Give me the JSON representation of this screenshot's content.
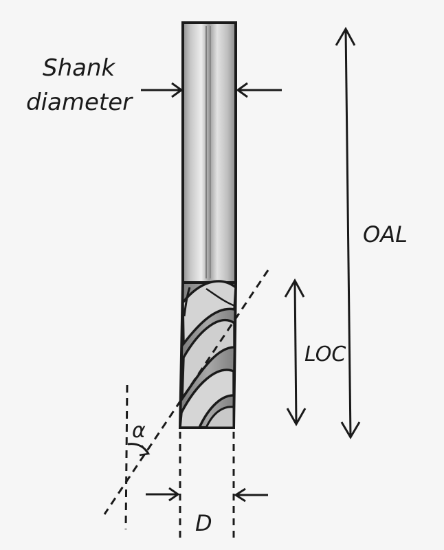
{
  "labels": {
    "shank_line1": "Shank",
    "shank_line2": "diameter",
    "oal": "OAL",
    "loc": "LOC",
    "angle": "α",
    "diameter": "D"
  },
  "colors": {
    "ink": "#1a1a1a",
    "paper": "#f6f6f6",
    "shank_mid": "#b9b9b9",
    "flute_dark": "#8a8a8a"
  }
}
